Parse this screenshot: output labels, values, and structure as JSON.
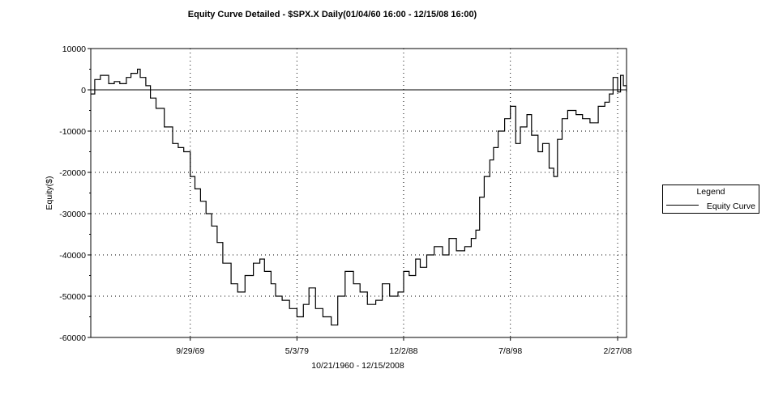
{
  "title": "Equity Curve Detailed - $SPX.X Daily(01/04/60 16:00 - 12/15/08 16:00)",
  "chart_data": {
    "type": "line",
    "title": "Equity Curve Detailed - $SPX.X Daily(01/04/60 16:00 - 12/15/08 16:00)",
    "xlabel": "10/21/1960 - 12/15/2008",
    "ylabel": "Equity($)",
    "xlim": [
      "10/21/1960",
      "12/15/2008"
    ],
    "ylim": [
      -60000,
      10000
    ],
    "yticks": [
      10000,
      0,
      -10000,
      -20000,
      -30000,
      -40000,
      -50000,
      -60000
    ],
    "ytick_labels": [
      "10000",
      "0",
      "-10000",
      "-20000",
      "-30000",
      "-40000",
      "-50000",
      "-60000"
    ],
    "xticks": [
      "9/29/69",
      "5/3/79",
      "12/2/88",
      "7/8/98",
      "2/27/08"
    ],
    "grid": true,
    "zero_line": true,
    "legend": {
      "title": "Legend",
      "position": "right"
    },
    "series": [
      {
        "name": "Equity Curve",
        "x": [
          "1960-10-21",
          "1961-03-01",
          "1961-09-01",
          "1962-06-01",
          "1962-12-01",
          "1963-06-01",
          "1964-01-01",
          "1964-06-01",
          "1965-01-01",
          "1965-04-01",
          "1965-10-01",
          "1966-03-01",
          "1966-09-01",
          "1967-06-01",
          "1968-03-01",
          "1968-09-01",
          "1969-03-01",
          "1969-09-29",
          "1970-03-01",
          "1970-09-01",
          "1971-03-01",
          "1971-09-01",
          "1972-03-01",
          "1972-09-01",
          "1973-06-01",
          "1974-01-01",
          "1974-09-01",
          "1975-06-01",
          "1976-01-01",
          "1976-06-01",
          "1977-01-01",
          "1977-06-01",
          "1978-01-01",
          "1978-09-01",
          "1979-05-03",
          "1979-12-01",
          "1980-06-01",
          "1981-01-01",
          "1981-09-01",
          "1982-06-01",
          "1983-01-01",
          "1983-09-01",
          "1984-06-01",
          "1985-01-01",
          "1985-09-01",
          "1986-06-01",
          "1987-01-01",
          "1987-09-01",
          "1988-06-01",
          "1988-12-02",
          "1989-06-01",
          "1990-01-01",
          "1990-06-01",
          "1991-01-01",
          "1991-09-01",
          "1992-06-01",
          "1993-01-01",
          "1993-09-01",
          "1994-06-01",
          "1995-01-01",
          "1995-06-01",
          "1995-10-01",
          "1996-03-01",
          "1996-09-01",
          "1997-01-01",
          "1997-06-01",
          "1998-01-01",
          "1998-07-08",
          "1999-01-01",
          "1999-06-01",
          "2000-01-01",
          "2000-06-01",
          "2001-01-01",
          "2001-06-01",
          "2002-01-01",
          "2002-06-01",
          "2002-10-01",
          "2003-03-01",
          "2003-09-01",
          "2004-06-01",
          "2005-01-01",
          "2005-09-01",
          "2006-06-01",
          "2007-01-01",
          "2007-06-01",
          "2007-10-01",
          "2008-02-27",
          "2008-06-01",
          "2008-09-01",
          "2008-12-15"
        ],
        "y": [
          -1000,
          2500,
          3500,
          1500,
          2000,
          1500,
          3000,
          4000,
          5000,
          3000,
          1000,
          -2000,
          -4500,
          -9000,
          -13000,
          -14000,
          -15000,
          -21000,
          -24000,
          -27000,
          -30000,
          -33000,
          -37000,
          -42000,
          -47000,
          -49000,
          -45000,
          -42000,
          -41000,
          -44000,
          -47000,
          -50000,
          -51000,
          -53000,
          -55000,
          -52000,
          -48000,
          -53000,
          -55000,
          -57000,
          -50000,
          -44000,
          -47000,
          -49000,
          -52000,
          -51000,
          -47000,
          -50000,
          -49000,
          -44000,
          -45000,
          -41000,
          -43000,
          -40000,
          -38000,
          -40000,
          -36000,
          -39000,
          -38000,
          -36000,
          -34000,
          -26000,
          -21000,
          -17000,
          -14000,
          -10000,
          -7000,
          -4000,
          -13000,
          -9000,
          -6000,
          -11000,
          -15000,
          -13000,
          -19000,
          -21000,
          -12000,
          -7000,
          -5000,
          -6000,
          -7000,
          -8000,
          -4000,
          -3000,
          -1000,
          3000,
          -500,
          3500,
          1000,
          -500
        ]
      }
    ]
  }
}
